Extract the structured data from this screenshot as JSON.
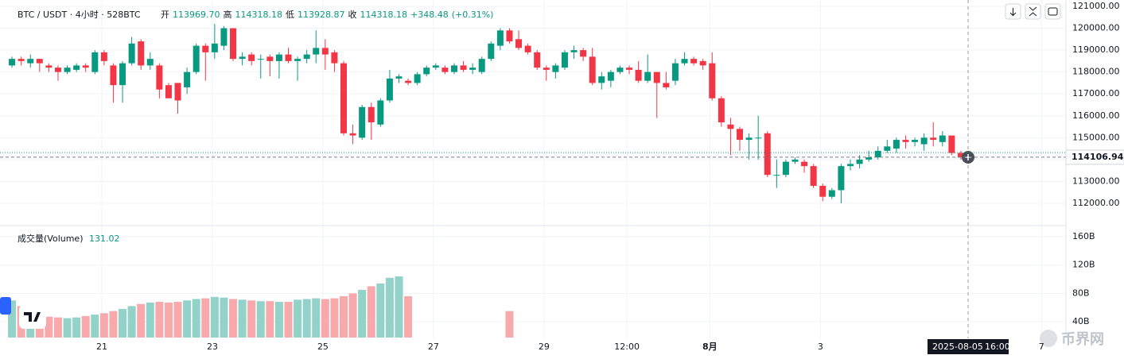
{
  "chart_data": [
    {
      "type": "candlestick",
      "title": "BTC / USDT · 4小时 · 528BTC",
      "legend": [
        {
          "label": "开",
          "value": {
            "value": 113969.7,
            "label": "113969.70"
          }
        },
        {
          "label": "高",
          "value": 114318.18
        },
        {
          "label": "低",
          "value": 113928.87
        },
        {
          "label": "收",
          "value": 114318.18
        }
      ],
      "change": "+348.48",
      "change_pct": "(+0.31%)",
      "up_color": "#089981",
      "down_color": "#f23645",
      "xlim": [
        -1.3,
        114.4
      ],
      "xticks": [
        {
          "value": 9.75,
          "label": "21"
        },
        {
          "value": 21.75,
          "label": "23"
        },
        {
          "value": 33.75,
          "label": "25"
        },
        {
          "value": 45.75,
          "label": "27"
        },
        {
          "value": 57.75,
          "label": "29"
        },
        {
          "value": 66.75,
          "label": "12:00"
        },
        {
          "value": 75.75,
          "label": "8月"
        },
        {
          "value": 87.75,
          "label": "3"
        },
        {
          "value": 111.75,
          "label": "7"
        }
      ],
      "ylim": [
        111020,
        121290
      ],
      "yticks": [
        {
          "value": 112000,
          "label": "112000.00"
        },
        {
          "value": 113000,
          "label": "113000.00"
        },
        {
          "value": 114000,
          "label": "114000.00"
        },
        {
          "value": 115000,
          "label": "115000.00"
        },
        {
          "value": 116000,
          "label": "116000.00"
        },
        {
          "value": 117000,
          "label": "117000.00"
        },
        {
          "value": 118000,
          "label": "118000.00"
        },
        {
          "value": 119000,
          "label": "119000.00"
        },
        {
          "value": 120000,
          "label": "120000.00"
        },
        {
          "value": 121000,
          "label": "121000.00"
        }
      ],
      "grid": true,
      "last_price": 114106.94,
      "crosshair_date": "2025-08-05",
      "crosshair_time": "16:00",
      "open": [
        118300,
        118600,
        118400,
        118600,
        118300,
        118200,
        118000,
        118100,
        118300,
        118000,
        118900,
        118300,
        117400,
        118400,
        119400,
        118300,
        118300,
        117400,
        117500,
        117300,
        118000,
        119200,
        118900,
        119200,
        120000,
        118600,
        118800,
        118600,
        118700,
        118500,
        118800,
        118500,
        118600,
        118800,
        119100,
        118900,
        118400,
        115200,
        115000,
        116400,
        115600,
        116700,
        117700,
        117600,
        117500,
        117900,
        118200,
        118200,
        118000,
        118300,
        118100,
        118000,
        118600,
        119200,
        119900,
        119500,
        119200,
        118900,
        118200,
        118000,
        118200,
        118900,
        119000,
        118700,
        117500,
        117600,
        118000,
        118200,
        118100,
        117600,
        118000,
        117500,
        117600,
        118400,
        118600,
        118500,
        118400,
        116800,
        115600,
        115400,
        114900,
        115000,
        115200,
        113300,
        113300,
        113900,
        113900,
        113700,
        112800,
        112300,
        112600,
        113700,
        113800,
        114000,
        114100,
        114400,
        114500,
        114900,
        114800,
        114700,
        115000,
        114800,
        115100,
        114300
      ],
      "high": [
        118700,
        118700,
        118800,
        118600,
        118400,
        118300,
        118300,
        118400,
        118400,
        119000,
        119000,
        118400,
        118500,
        119600,
        119500,
        118900,
        118400,
        117500,
        117500,
        118200,
        119300,
        119300,
        120200,
        120100,
        120000,
        118900,
        118900,
        118800,
        118800,
        118900,
        119100,
        118700,
        119000,
        119900,
        119500,
        119000,
        118500,
        115600,
        116500,
        116600,
        116800,
        118100,
        117900,
        117700,
        118000,
        118300,
        118400,
        118300,
        118400,
        118500,
        118400,
        118700,
        119400,
        120000,
        120000,
        119900,
        119300,
        119000,
        118300,
        118400,
        119000,
        119200,
        119100,
        119100,
        118000,
        118100,
        118300,
        118300,
        118500,
        118800,
        118000,
        118000,
        118600,
        118900,
        118700,
        118600,
        118900,
        116900,
        115900,
        115500,
        115200,
        116000,
        115300,
        114000,
        114000,
        114100,
        114000,
        113800,
        112900,
        112700,
        113800,
        114000,
        114200,
        114400,
        114600,
        114900,
        115000,
        115100,
        115000,
        115200,
        115700,
        115300,
        115100,
        114400
      ],
      "low": [
        118200,
        118300,
        118200,
        118000,
        118000,
        117600,
        117900,
        118000,
        118000,
        117900,
        118300,
        116600,
        116600,
        118300,
        118100,
        118100,
        116800,
        116800,
        116100,
        117000,
        117900,
        117600,
        118600,
        119000,
        118500,
        118300,
        118300,
        117700,
        117800,
        117700,
        118400,
        117600,
        118400,
        118400,
        118100,
        118000,
        115100,
        114700,
        114900,
        114900,
        115500,
        116600,
        117500,
        117400,
        117400,
        117800,
        118100,
        117900,
        117900,
        118000,
        117900,
        117900,
        118500,
        119000,
        119300,
        119000,
        118800,
        118100,
        117600,
        117700,
        118100,
        118600,
        118500,
        117400,
        117200,
        117300,
        117900,
        117900,
        117500,
        117500,
        115900,
        117200,
        117400,
        118300,
        118300,
        118100,
        116700,
        115500,
        114200,
        114400,
        114000,
        114000,
        113200,
        112700,
        113200,
        113800,
        113400,
        112700,
        112100,
        112200,
        112000,
        113500,
        113600,
        113900,
        114000,
        114300,
        114300,
        114500,
        114600,
        114400,
        114600,
        114600,
        114200,
        114000
      ],
      "close": [
        118600,
        118500,
        118600,
        118400,
        118200,
        118000,
        118200,
        118300,
        118200,
        118900,
        118500,
        117400,
        118400,
        119300,
        118300,
        118600,
        117200,
        116800,
        116700,
        118000,
        119200,
        118900,
        119300,
        120000,
        118600,
        118700,
        118500,
        118600,
        118500,
        118800,
        118500,
        118600,
        118800,
        119100,
        118800,
        118400,
        115200,
        115100,
        116400,
        115700,
        116700,
        117700,
        117800,
        117500,
        117900,
        118200,
        118300,
        118000,
        118300,
        118100,
        118200,
        118600,
        119300,
        119900,
        119400,
        119100,
        118900,
        118200,
        118100,
        118300,
        118900,
        119000,
        118700,
        117500,
        117800,
        118000,
        118200,
        118100,
        117600,
        118000,
        117500,
        117300,
        118400,
        118600,
        118400,
        118300,
        116800,
        115700,
        115400,
        114900,
        115000,
        115000,
        113300,
        113300,
        113900,
        114000,
        113700,
        112800,
        112300,
        112600,
        113700,
        113800,
        114000,
        114100,
        114400,
        114600,
        114900,
        114800,
        114900,
        115000,
        114900,
        115100,
        114300,
        114100
      ]
    },
    {
      "type": "bar",
      "title": "成交量(Volume)",
      "current_value": "131.02",
      "up_color": "#92d2c9",
      "down_color": "#f8a9ab",
      "ylim": [
        17.6,
        174.6
      ],
      "yticks": [
        {
          "value": 40,
          "label": "40B"
        },
        {
          "value": 80,
          "label": "80B"
        },
        {
          "value": 120,
          "label": "120B"
        },
        {
          "value": 160,
          "label": "160B"
        }
      ],
      "values": [
        70,
        62,
        55,
        50,
        47,
        46,
        45,
        46,
        48,
        50,
        52,
        55,
        58,
        62,
        65,
        67,
        68,
        67,
        68,
        70,
        72,
        73,
        75,
        74,
        72,
        71,
        70,
        69,
        69,
        68,
        68,
        71,
        72,
        73,
        72,
        73,
        76,
        80,
        85,
        90,
        94,
        102,
        104,
        76,
        null,
        null,
        null,
        null,
        null,
        null,
        null,
        null,
        null,
        null,
        55,
        null,
        null,
        null,
        null,
        null,
        null,
        null,
        null,
        null,
        null,
        null,
        null,
        null,
        null,
        null,
        null,
        null,
        null,
        null,
        null,
        null,
        null,
        null,
        null,
        null,
        null,
        null,
        null,
        null,
        null,
        null,
        null,
        null,
        null,
        null,
        null,
        null,
        null,
        null,
        null,
        null,
        null,
        null,
        null,
        null,
        null,
        null,
        null,
        null
      ]
    }
  ],
  "watermark": "币界网"
}
